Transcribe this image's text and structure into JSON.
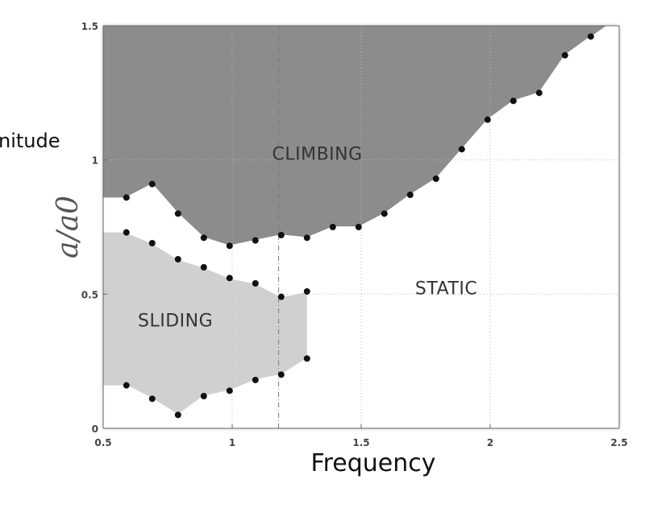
{
  "chart_data": {
    "type": "scatter",
    "title": "",
    "xlabel": "Frequency",
    "ylabel": "a/a0",
    "overflow_label": "nitude",
    "xlim": [
      0.5,
      2.5
    ],
    "ylim": [
      0,
      1.5
    ],
    "x_ticks": [
      "0.5",
      "1",
      "1.5",
      "2",
      "2.5"
    ],
    "y_ticks": [
      "0",
      "0.5",
      "1",
      "1.5"
    ],
    "x_tick_values": [
      0.5,
      1,
      1.5,
      2,
      2.5
    ],
    "y_tick_values": [
      0,
      0.5,
      1,
      1.5
    ],
    "reference_line_x": 1.18,
    "colors": {
      "climbing": "#8c8c8c",
      "sliding": "#d0d0d0",
      "static": "#ffffff",
      "marker": "#111111",
      "axis": "#666666"
    },
    "regions": [
      {
        "name": "CLIMBING",
        "label_at": [
          1.33,
          1.0
        ]
      },
      {
        "name": "SLIDING",
        "label_at": [
          0.78,
          0.38
        ]
      },
      {
        "name": "STATIC",
        "label_at": [
          1.83,
          0.5
        ]
      }
    ],
    "series": [
      {
        "id": "climbing_boundary",
        "x": [
          0.59,
          0.69,
          0.79,
          0.89,
          0.99,
          1.09,
          1.19,
          1.29,
          1.39,
          1.49,
          1.59,
          1.69,
          1.79,
          1.89,
          1.99,
          2.09,
          2.19,
          2.29,
          2.39
        ],
        "y": [
          0.86,
          0.91,
          0.8,
          0.71,
          0.68,
          0.7,
          0.72,
          0.71,
          0.75,
          0.75,
          0.8,
          0.87,
          0.93,
          1.04,
          1.15,
          1.22,
          1.25,
          1.39,
          1.46
        ]
      },
      {
        "id": "sliding_upper",
        "x": [
          0.59,
          0.69,
          0.79,
          0.89,
          0.99,
          1.09,
          1.19,
          1.29
        ],
        "y": [
          0.73,
          0.69,
          0.63,
          0.6,
          0.56,
          0.54,
          0.49,
          0.51
        ]
      },
      {
        "id": "sliding_lower",
        "x": [
          0.59,
          0.69,
          0.79,
          0.89,
          0.99,
          1.09,
          1.19,
          1.29
        ],
        "y": [
          0.16,
          0.11,
          0.05,
          0.12,
          0.14,
          0.18,
          0.2,
          0.26
        ]
      }
    ]
  }
}
